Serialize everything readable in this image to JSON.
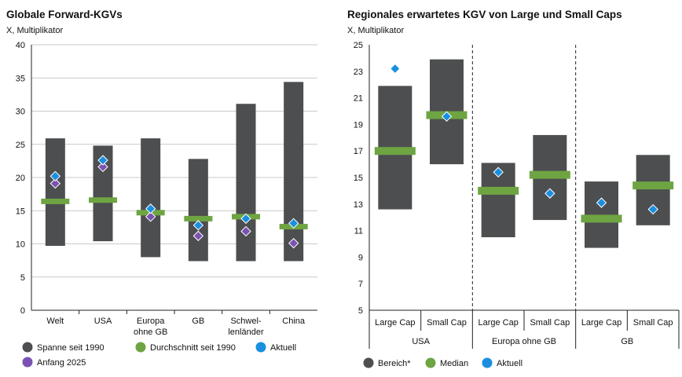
{
  "chart_data": [
    {
      "type": "bar",
      "title": "Globale Forward-KGVs",
      "subtitle": "X, Multiplikator",
      "ylim": [
        0,
        40
      ],
      "yticks": [
        0,
        5,
        10,
        15,
        20,
        25,
        30,
        35,
        40
      ],
      "categories": [
        [
          "Welt"
        ],
        [
          "USA"
        ],
        [
          "Europa",
          "ohne GB"
        ],
        [
          "GB"
        ],
        [
          "Schwel-",
          "lenländer"
        ],
        [
          "China"
        ]
      ],
      "range_low": [
        9.7,
        10.4,
        8.0,
        7.4,
        7.4,
        7.4
      ],
      "range_high": [
        25.9,
        24.8,
        25.9,
        22.8,
        31.1,
        34.4
      ],
      "average": [
        16.4,
        16.6,
        14.7,
        13.8,
        14.1,
        12.6
      ],
      "current": [
        20.2,
        22.6,
        15.3,
        12.8,
        13.8,
        13.1
      ],
      "start_2025": [
        19.1,
        21.6,
        14.1,
        11.2,
        11.9,
        10.1
      ],
      "legend": [
        {
          "key": "range",
          "label": "Spanne seit 1990"
        },
        {
          "key": "average",
          "label": "Durchschnitt seit 1990"
        },
        {
          "key": "current",
          "label": "Aktuell"
        },
        {
          "key": "start",
          "label": "Anfang 2025"
        }
      ]
    },
    {
      "type": "bar",
      "title": "Regionales erwartetes KGV von Large und Small Caps",
      "subtitle": "X, Multiplikator",
      "ylim": [
        5,
        25
      ],
      "yticks": [
        5,
        7,
        9,
        11,
        13,
        15,
        17,
        19,
        21,
        23,
        25
      ],
      "categories": [
        "Large Cap",
        "Small Cap",
        "Large Cap",
        "Small Cap",
        "Large Cap",
        "Small Cap"
      ],
      "groups": [
        "USA",
        "Europa ohne GB",
        "GB"
      ],
      "range_low": [
        12.6,
        16.0,
        10.5,
        11.8,
        9.7,
        11.4
      ],
      "range_high": [
        21.9,
        23.9,
        16.1,
        18.2,
        14.7,
        16.7
      ],
      "median": [
        17.0,
        19.7,
        14.0,
        15.2,
        11.9,
        14.4
      ],
      "current": [
        23.2,
        19.6,
        15.4,
        13.8,
        13.1,
        12.6
      ],
      "legend": [
        {
          "key": "range",
          "label": "Bereich*"
        },
        {
          "key": "median",
          "label": "Median"
        },
        {
          "key": "current",
          "label": "Aktuell"
        }
      ]
    }
  ],
  "colors": {
    "range": "#4d4e50",
    "average": "#6ea542",
    "current": "#1a8fe0",
    "start": "#7b52b2",
    "axis": "#222222",
    "grid": "#b8b8b8"
  }
}
